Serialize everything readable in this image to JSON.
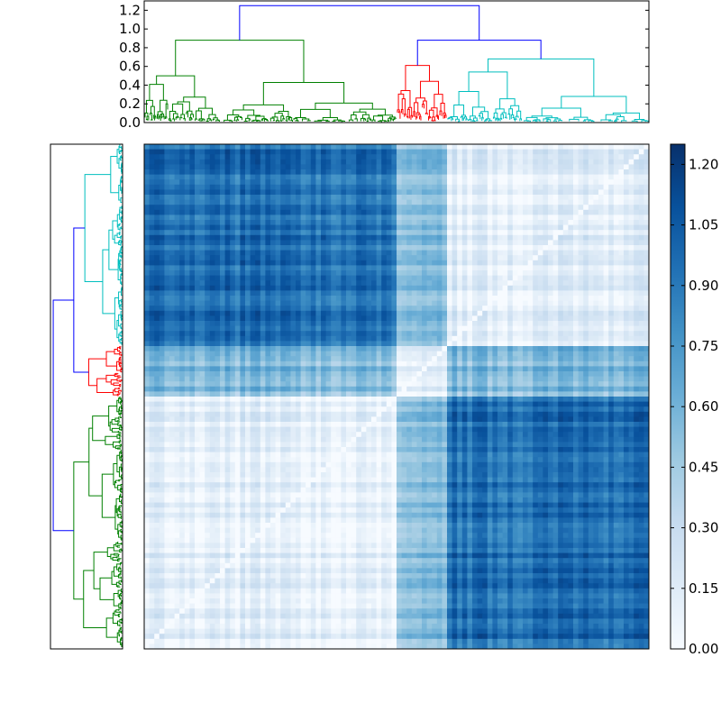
{
  "chart_data": [
    {
      "type": "dendrogram",
      "orientation": "top",
      "ylim": [
        0.0,
        1.3
      ],
      "yticks": [
        "0.0",
        "0.2",
        "0.4",
        "0.6",
        "0.8",
        "1.0",
        "1.2"
      ],
      "clusters": [
        {
          "name": "green",
          "color": "#008000",
          "share": 0.5,
          "height": 0.88
        },
        {
          "name": "red",
          "color": "#ff0000",
          "share": 0.1,
          "height": 0.61
        },
        {
          "name": "cyan",
          "color": "#00bfbf",
          "share": 0.4,
          "height": 0.68
        }
      ],
      "root_color": "#0000ff",
      "root_height": 1.25,
      "inner_link_height": 0.88
    },
    {
      "type": "dendrogram",
      "orientation": "left",
      "clusters_top_to_bottom": [
        {
          "name": "cyan",
          "color": "#00bfbf",
          "share": 0.4
        },
        {
          "name": "red",
          "color": "#ff0000",
          "share": 0.1
        },
        {
          "name": "green",
          "color": "#008000",
          "share": 0.5
        }
      ],
      "root_color": "#0000ff"
    },
    {
      "type": "heatmap",
      "colormap": "Blues",
      "n": 100,
      "block_order_x": [
        "green",
        "red",
        "cyan"
      ],
      "block_order_y": [
        "cyan",
        "red",
        "green"
      ],
      "within_block_distance": 0.12,
      "between_blocks_distance": {
        "green-red": 0.55,
        "green-cyan": 0.95,
        "red-cyan": 0.55
      }
    },
    {
      "type": "colorbar",
      "colormap": "Blues",
      "vmin": 0.0,
      "vmax": 1.25,
      "ticks": [
        "0.00",
        "0.15",
        "0.30",
        "0.45",
        "0.60",
        "0.75",
        "0.90",
        "1.05",
        "1.20"
      ]
    }
  ]
}
